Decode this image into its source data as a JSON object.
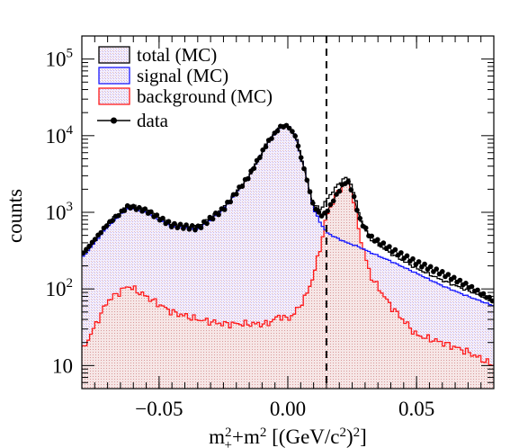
{
  "chart_data": {
    "type": "line",
    "xlabel": "m²₊+m² [(GeV/c²)²]",
    "xlabel_parts": {
      "m": "m",
      "sup1": "2",
      "sub1": "+",
      "plus": "+m",
      "sup2": "2",
      "unit_a": " [(GeV/c",
      "sup3": "2",
      "unit_b": ")",
      "sup4": "2",
      "unit_c": "]"
    },
    "ylabel": "counts",
    "xlim": [
      -0.08,
      0.08
    ],
    "ylim": [
      5,
      200000
    ],
    "y_scale": "log",
    "grid": false,
    "x_ticks": [
      -0.05,
      0,
      0.05
    ],
    "x_tick_labels": [
      "−0.05",
      "0.00",
      "0.05"
    ],
    "y_ticks": [
      10,
      100,
      1000,
      10000,
      100000
    ],
    "y_tick_labels": [
      {
        "base": "10",
        "exp": ""
      },
      {
        "base": "10",
        "exp": "2"
      },
      {
        "base": "10",
        "exp": "3"
      },
      {
        "base": "10",
        "exp": "4"
      },
      {
        "base": "10",
        "exp": "5"
      }
    ],
    "vertical_line_x": 0.015,
    "legend_position": "top-left",
    "legend": [
      {
        "label": "total (MC)",
        "color": "#000000",
        "style": "line"
      },
      {
        "label": "signal (MC)",
        "color": "#1a1aff",
        "style": "line"
      },
      {
        "label": "background (MC)",
        "color": "#ff1a1a",
        "style": "line"
      },
      {
        "label": "data",
        "color": "#000000",
        "style": "marker-line"
      }
    ],
    "x_knots": [
      -0.08,
      -0.07,
      -0.062,
      -0.055,
      -0.045,
      -0.035,
      -0.025,
      -0.015,
      -0.008,
      -0.003,
      0.0,
      0.003,
      0.007,
      0.01,
      0.013,
      0.015,
      0.018,
      0.021,
      0.023,
      0.025,
      0.028,
      0.032,
      0.04,
      0.05,
      0.06,
      0.07,
      0.08
    ],
    "series": [
      {
        "name": "signal (MC)",
        "color": "#1a1aff",
        "values": [
          250,
          650,
          1150,
          1000,
          650,
          600,
          1100,
          3000,
          8000,
          13000,
          14000,
          10000,
          3000,
          1100,
          700,
          550,
          480,
          430,
          400,
          380,
          350,
          300,
          230,
          160,
          110,
          80,
          60
        ]
      },
      {
        "name": "background (MC)",
        "color": "#ff1a1a",
        "values": [
          15,
          70,
          110,
          80,
          50,
          40,
          35,
          35,
          35,
          45,
          40,
          50,
          80,
          150,
          400,
          900,
          1500,
          2200,
          2500,
          1800,
          500,
          150,
          60,
          25,
          20,
          15,
          10
        ]
      },
      {
        "name": "total (MC)",
        "color": "#000000",
        "values": [
          265,
          720,
          1260,
          1080,
          700,
          640,
          1135,
          3035,
          8035,
          13045,
          14040,
          10050,
          3080,
          1250,
          1100,
          1450,
          1980,
          2630,
          2900,
          2180,
          850,
          450,
          290,
          185,
          130,
          95,
          70
        ]
      },
      {
        "name": "data",
        "color": "#000000",
        "values": [
          280,
          700,
          1200,
          1050,
          680,
          620,
          1100,
          3000,
          8000,
          13000,
          13500,
          9800,
          3000,
          1200,
          900,
          1000,
          1500,
          2200,
          2600,
          1900,
          800,
          480,
          330,
          220,
          160,
          110,
          70
        ]
      }
    ]
  }
}
